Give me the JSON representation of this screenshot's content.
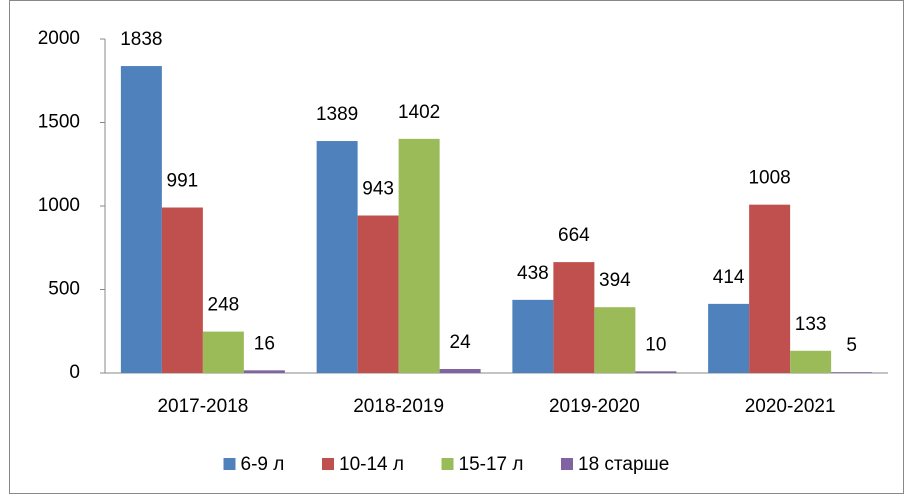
{
  "chart_data": {
    "type": "bar",
    "categories": [
      "2017-2018",
      "2018-2019",
      "2019-2020",
      "2020-2021"
    ],
    "series": [
      {
        "name": "6-9 л",
        "color": "#4f81bd",
        "values": [
          1838,
          1389,
          438,
          414
        ]
      },
      {
        "name": "10-14 л",
        "color": "#c0504d",
        "values": [
          991,
          943,
          664,
          1008
        ]
      },
      {
        "name": "15-17 л",
        "color": "#9bbb59",
        "values": [
          248,
          1402,
          394,
          133
        ]
      },
      {
        "name": "18 старше",
        "color": "#8064a2",
        "values": [
          16,
          24,
          10,
          5
        ]
      }
    ],
    "ylim": [
      0,
      2000
    ],
    "yticks": [
      0,
      500,
      1000,
      1500,
      2000
    ],
    "grid": false,
    "legend": "bottom"
  }
}
